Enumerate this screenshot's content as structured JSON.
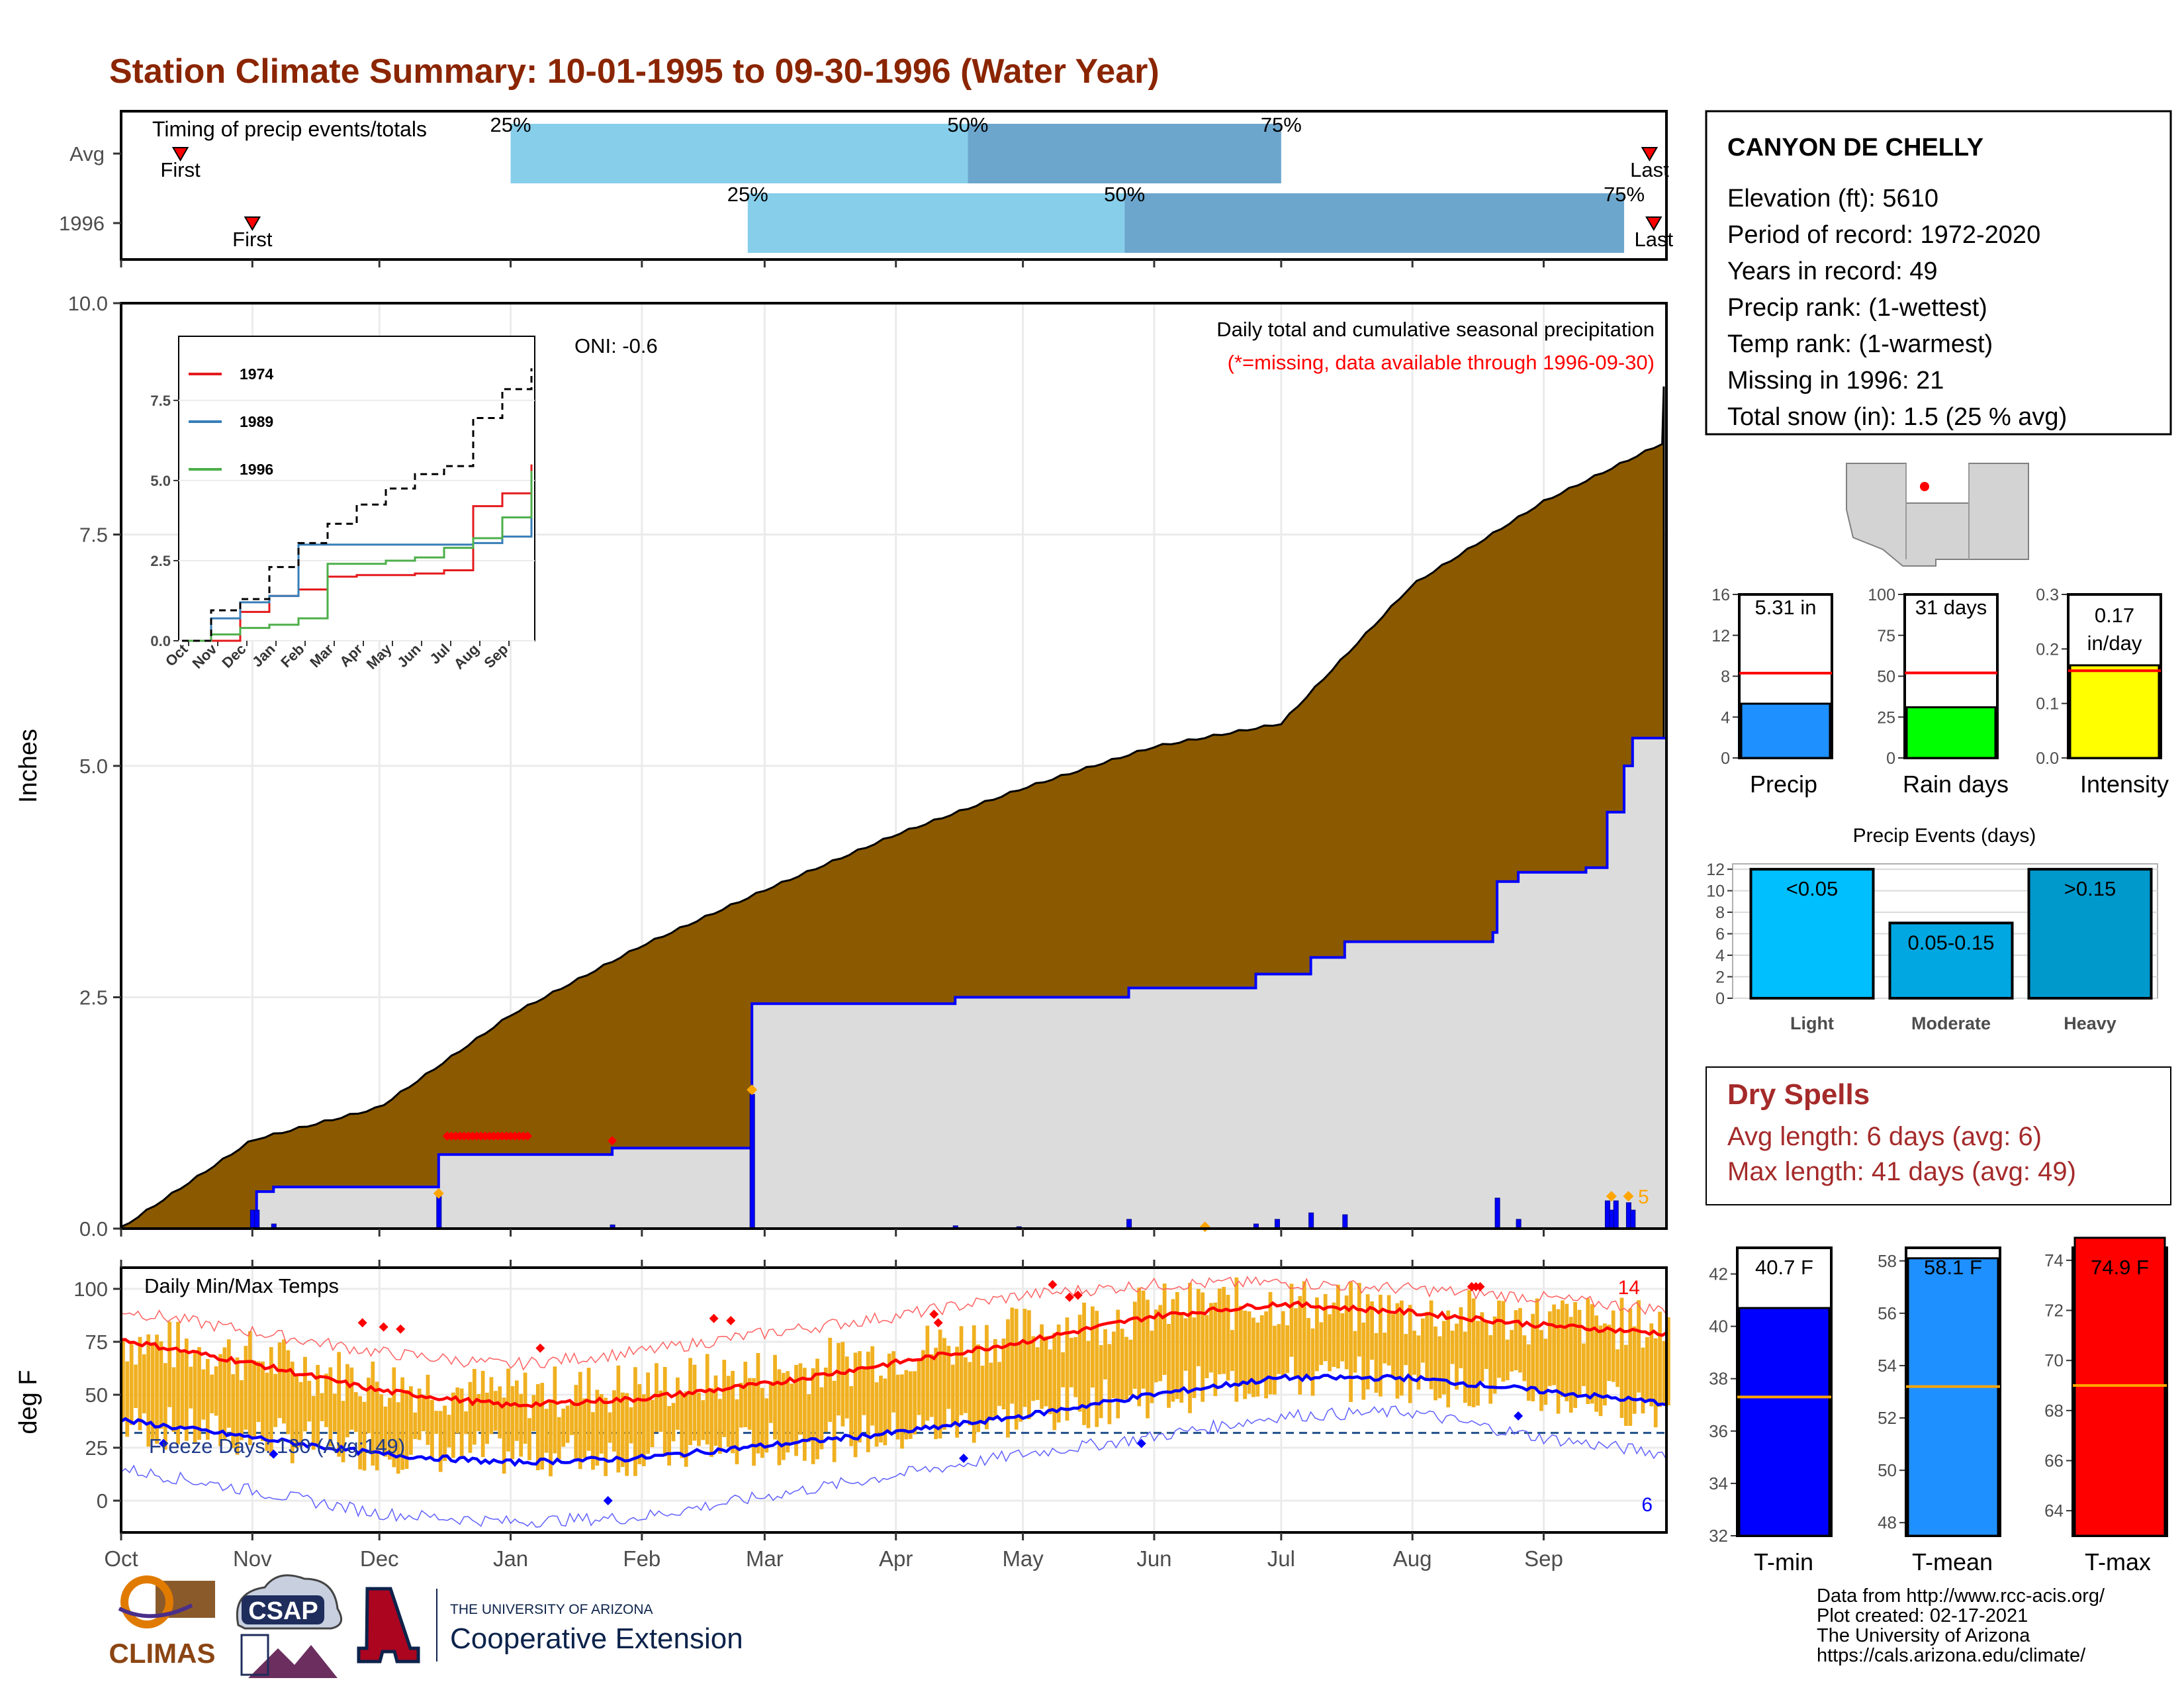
{
  "title": "Station Climate Summary: 10-01-1995 to 09-30-1996 (Water Year)",
  "colors": {
    "title": "#8B2500",
    "cum_avg_fill": "#8B5A00",
    "cum_cur_fill": "#DCDCDC",
    "cum_cur_line": "#0000FF",
    "timing_light": "#87CEEB",
    "timing_dark": "#6CA6CD",
    "temp_bar": "#F0B020",
    "tmax_line": "#FF0000",
    "tmin_line": "#0000FF",
    "precip_bar": "#1E90FF",
    "raindays_bar": "#00FF00",
    "intensity_bar": "#FFFF00",
    "light_bar": "#00BFFF",
    "moderate_bar": "#00A7E1",
    "heavy_bar": "#0099CC",
    "tmin_box": "#0000FF",
    "tmean_box": "#1E90FF",
    "tmax_box": "#FF0000",
    "dry_spell_text": "#A52A2A"
  },
  "timing": {
    "title": "Timing of precip events/totals",
    "rows": [
      {
        "label": "Avg",
        "first_date": "1995-10-15",
        "p25": "1996-01-01",
        "p50": "1996-04-18",
        "p75": "1996-07-01",
        "last_date": "1996-09-26",
        "first_label": "First",
        "last_label": "Last",
        "p25_label": "25%",
        "p50_label": "50%",
        "p75_label": "75%"
      },
      {
        "label": "1996",
        "first_date": "1995-11-01",
        "p25": "1996-02-26",
        "p50": "1996-05-25",
        "p75": "1996-09-20",
        "last_date": "1996-09-27",
        "first_label": "First",
        "last_label": "Last",
        "p25_label": "25%",
        "p50_label": "50%",
        "p75_label": "75%"
      }
    ]
  },
  "chart_data": [
    {
      "type": "area",
      "name": "cumulative precipitation",
      "title": "Daily total and cumulative seasonal precipitation",
      "subtitle": "(*=missing, data available through 1996-09-30)",
      "oni_label": "ONI: -0.6",
      "ylabel": "Inches",
      "ylim": [
        0,
        10
      ],
      "yticks": [
        0.0,
        2.5,
        5.0,
        7.5,
        10.0
      ],
      "ytick_labels": [
        "0.0",
        "2.5",
        "5.0",
        "7.5",
        "10.0"
      ],
      "xticks": [
        "Oct",
        "Nov",
        "Dec",
        "Jan",
        "Feb",
        "Mar",
        "Apr",
        "May",
        "Jun",
        "Jul",
        "Aug",
        "Sep"
      ],
      "avg_cumulative": [
        {
          "x": "1995-10-01",
          "y": 0.0
        },
        {
          "x": "1995-11-01",
          "y": 0.95
        },
        {
          "x": "1995-12-01",
          "y": 1.3
        },
        {
          "x": "1996-01-01",
          "y": 2.3
        },
        {
          "x": "1996-02-01",
          "y": 3.05
        },
        {
          "x": "1996-03-01",
          "y": 3.65
        },
        {
          "x": "1996-04-01",
          "y": 4.25
        },
        {
          "x": "1996-05-01",
          "y": 4.75
        },
        {
          "x": "1996-06-01",
          "y": 5.2
        },
        {
          "x": "1996-07-01",
          "y": 5.45
        },
        {
          "x": "1996-08-01",
          "y": 6.95
        },
        {
          "x": "1996-09-01",
          "y": 7.85
        },
        {
          "x": "1996-09-30",
          "y": 8.5
        }
      ],
      "current_cumulative": [
        {
          "x": "1995-10-01",
          "y": 0.0
        },
        {
          "x": "1995-11-01",
          "y": 0.0
        },
        {
          "x": "1995-11-02",
          "y": 0.4
        },
        {
          "x": "1995-11-06",
          "y": 0.45
        },
        {
          "x": "1995-12-14",
          "y": 0.45
        },
        {
          "x": "1995-12-15",
          "y": 0.8
        },
        {
          "x": "1996-01-25",
          "y": 0.87
        },
        {
          "x": "1996-02-26",
          "y": 0.87
        },
        {
          "x": "1996-02-27",
          "y": 2.43
        },
        {
          "x": "1996-04-15",
          "y": 2.5
        },
        {
          "x": "1996-05-25",
          "y": 2.5
        },
        {
          "x": "1996-05-26",
          "y": 2.6
        },
        {
          "x": "1996-06-25",
          "y": 2.75
        },
        {
          "x": "1996-07-08",
          "y": 2.93
        },
        {
          "x": "1996-07-16",
          "y": 3.1
        },
        {
          "x": "1996-08-20",
          "y": 3.2
        },
        {
          "x": "1996-08-21",
          "y": 3.75
        },
        {
          "x": "1996-08-26",
          "y": 3.85
        },
        {
          "x": "1996-09-11",
          "y": 3.9
        },
        {
          "x": "1996-09-16",
          "y": 4.5
        },
        {
          "x": "1996-09-20",
          "y": 5.0
        },
        {
          "x": "1996-09-22",
          "y": 5.3
        },
        {
          "x": "1996-09-30",
          "y": 5.3
        }
      ],
      "daily_precip": [
        {
          "x": "1995-11-01",
          "y": 0.2
        },
        {
          "x": "1995-11-02",
          "y": 0.2
        },
        {
          "x": "1995-11-06",
          "y": 0.05
        },
        {
          "x": "1995-12-15",
          "y": 0.35
        },
        {
          "x": "1996-01-25",
          "y": 0.04
        },
        {
          "x": "1996-02-27",
          "y": 1.45
        },
        {
          "x": "1996-04-15",
          "y": 0.03
        },
        {
          "x": "1996-04-30",
          "y": 0.02
        },
        {
          "x": "1996-05-26",
          "y": 0.1
        },
        {
          "x": "1996-06-25",
          "y": 0.05
        },
        {
          "x": "1996-06-30",
          "y": 0.1
        },
        {
          "x": "1996-07-08",
          "y": 0.17
        },
        {
          "x": "1996-07-16",
          "y": 0.15
        },
        {
          "x": "1996-08-21",
          "y": 0.33
        },
        {
          "x": "1996-08-26",
          "y": 0.1
        },
        {
          "x": "1996-09-16",
          "y": 0.3
        },
        {
          "x": "1996-09-17",
          "y": 0.2
        },
        {
          "x": "1996-09-18",
          "y": 0.3
        },
        {
          "x": "1996-09-21",
          "y": 0.28
        },
        {
          "x": "1996-09-22",
          "y": 0.2
        }
      ],
      "missing_marks_label": "5",
      "missing_dates": [
        "1995-12-17",
        "1995-12-18",
        "1995-12-19",
        "1995-12-20",
        "1995-12-21",
        "1995-12-22",
        "1995-12-23",
        "1995-12-24",
        "1995-12-25",
        "1995-12-26",
        "1995-12-27",
        "1995-12-28",
        "1995-12-29",
        "1995-12-30",
        "1995-12-31",
        "1996-01-01",
        "1996-01-02",
        "1996-01-03",
        "1996-01-04",
        "1996-01-05",
        "1996-01-25"
      ],
      "orange_marks": [
        {
          "x": "1995-12-15",
          "y": 0.38
        },
        {
          "x": "1996-02-27",
          "y": 1.5
        },
        {
          "x": "1996-06-13",
          "y": 0.02
        },
        {
          "x": "1996-09-17",
          "y": 0.35
        },
        {
          "x": "1996-09-21",
          "y": 0.35
        }
      ]
    },
    {
      "type": "line",
      "name": "inset cumulative comparison",
      "ylim": [
        0,
        9.5
      ],
      "yticks": [
        0.0,
        2.5,
        5.0,
        7.5
      ],
      "ytick_labels": [
        "0.0",
        "2.5",
        "5.0",
        "7.5"
      ],
      "xticks": [
        "Oct",
        "Nov",
        "Dec",
        "Jan",
        "Feb",
        "Mar",
        "Apr",
        "May",
        "Jun",
        "Jul",
        "Aug",
        "Sep"
      ],
      "series": [
        {
          "name": "1974",
          "color": "#E41A1C",
          "values": [
            0.0,
            0.0,
            0.9,
            1.4,
            1.6,
            2.0,
            2.05,
            2.05,
            2.1,
            2.2,
            4.2,
            4.6,
            5.5
          ]
        },
        {
          "name": "1989",
          "color": "#377EB8",
          "values": [
            0.0,
            0.7,
            1.2,
            1.4,
            3.0,
            3.0,
            3.0,
            3.0,
            3.0,
            3.0,
            3.05,
            3.25,
            3.9
          ]
        },
        {
          "name": "1996",
          "color": "#4DAF4A",
          "values": [
            0.0,
            0.2,
            0.4,
            0.5,
            0.7,
            2.4,
            2.4,
            2.5,
            2.6,
            2.9,
            3.2,
            3.85,
            5.3
          ]
        },
        {
          "name": "avg",
          "color": "#000000",
          "dashed": true,
          "values": [
            0.0,
            0.95,
            1.3,
            2.3,
            3.05,
            3.65,
            4.25,
            4.75,
            5.2,
            5.45,
            6.95,
            7.85,
            8.5
          ]
        }
      ]
    },
    {
      "type": "bar",
      "name": "daily temperatures",
      "title": "Daily Min/Max Temps",
      "ylabel": "deg F",
      "ylim": [
        -15,
        110
      ],
      "yticks": [
        0,
        25,
        50,
        75,
        100
      ],
      "xticks": [
        "Oct",
        "Nov",
        "Dec",
        "Jan",
        "Feb",
        "Mar",
        "Apr",
        "May",
        "Jun",
        "Jul",
        "Aug",
        "Sep"
      ],
      "freeze_label": "Freeze Days: 130 (Avg:149)",
      "freeze_line": 32,
      "record_high_count": "14",
      "record_low_count": "6",
      "avg_tmax_monthly": [
        76,
        65,
        52,
        45,
        48,
        55,
        65,
        75,
        87,
        93,
        89,
        83,
        79
      ],
      "avg_tmin_monthly": [
        38,
        30,
        22,
        18,
        20,
        26,
        32,
        40,
        50,
        58,
        58,
        52,
        46
      ],
      "rec_tmax_monthly": [
        90,
        80,
        70,
        64,
        70,
        79,
        87,
        97,
        102,
        103,
        100,
        96,
        90
      ],
      "rec_tmin_monthly": [
        15,
        5,
        -6,
        -10,
        -8,
        2,
        12,
        22,
        30,
        40,
        42,
        30,
        22
      ],
      "obs_tmax_monthly": [
        76,
        68,
        56,
        50,
        54,
        60,
        70,
        80,
        90,
        94,
        88,
        86,
        82
      ],
      "obs_tmin_monthly": [
        36,
        30,
        24,
        22,
        22,
        26,
        32,
        40,
        50,
        58,
        57,
        50,
        44
      ]
    },
    {
      "type": "bar",
      "name": "Precip",
      "value_label": "5.31 in",
      "value": 5.31,
      "avg": 8.3,
      "ylim": [
        0,
        16
      ],
      "yticks": [
        0,
        4,
        8,
        12,
        16
      ]
    },
    {
      "type": "bar",
      "name": "Rain days",
      "value_label": "31 days",
      "value": 31,
      "avg": 52,
      "ylim": [
        0,
        100
      ],
      "yticks": [
        0,
        25,
        50,
        75,
        100
      ]
    },
    {
      "type": "bar",
      "name": "Intensity",
      "value_label_1": "0.17",
      "value_label_2": "in/day",
      "value": 0.17,
      "avg": 0.16,
      "ylim": [
        0,
        0.3
      ],
      "yticks": [
        "0.0",
        "0.1",
        "0.2",
        "0.3"
      ]
    },
    {
      "type": "bar",
      "name": "Precip Events (days)",
      "title": "Precip Events (days)",
      "categories": [
        "Light",
        "Moderate",
        "Heavy"
      ],
      "bar_labels": [
        "<0.05",
        "0.05-0.15",
        ">0.15"
      ],
      "values": [
        12,
        7,
        12
      ],
      "ylim": [
        0,
        12.5
      ],
      "yticks": [
        0,
        2,
        4,
        6,
        8,
        10,
        12
      ]
    },
    {
      "type": "bar",
      "name": "T-min",
      "value_label": "40.7 F",
      "value": 40.7,
      "avg": 37.3,
      "ylim": [
        32,
        43
      ],
      "yticks": [
        32,
        34,
        36,
        38,
        40,
        42
      ]
    },
    {
      "type": "bar",
      "name": "T-mean",
      "value_label": "58.1 F",
      "value": 58.1,
      "avg": 53.2,
      "ylim": [
        47.5,
        58.5
      ],
      "yticks": [
        48,
        50,
        52,
        54,
        56,
        58
      ]
    },
    {
      "type": "bar",
      "name": "T-max",
      "value_label": "74.9 F",
      "value": 74.9,
      "avg": 69.0,
      "ylim": [
        63,
        74.5
      ],
      "yticks": [
        64,
        66,
        68,
        70,
        72,
        74
      ]
    }
  ],
  "station": {
    "name": "CANYON DE CHELLY",
    "lines": [
      "Elevation (ft): 5610",
      "Period of record: 1972-2020",
      "Years in record: 49",
      "Precip rank:  (1-wettest)",
      "Temp rank:  (1-warmest)",
      "Missing in 1996: 21",
      "Total snow (in): 1.5 (25 % avg)"
    ]
  },
  "dry_spells": {
    "title": "Dry Spells",
    "avg_line": "Avg length: 6 days (avg: 6)",
    "max_line": "Max length: 41 days (avg: 49)"
  },
  "small_labels": {
    "precip": "Precip",
    "rain_days": "Rain days",
    "intensity": "Intensity",
    "tmin": "T-min",
    "tmean": "T-mean",
    "tmax": "T-max"
  },
  "footer": {
    "lines": [
      "Data from http://www.rcc-acis.org/",
      "Plot created: 02-17-2021",
      "The University of Arizona",
      "https://cals.arizona.edu/climate/"
    ],
    "climas_label": "CLIMAS",
    "csap_label": "CSAP",
    "ua_line1": "THE UNIVERSITY OF ARIZONA",
    "ua_line2": "Cooperative Extension"
  }
}
